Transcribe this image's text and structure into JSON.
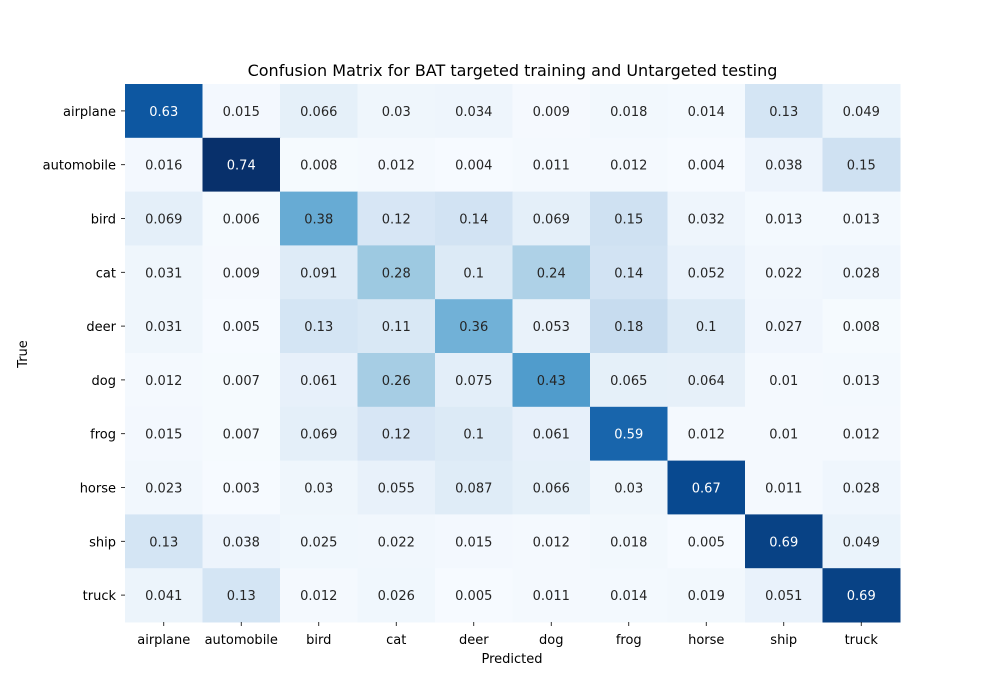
{
  "chart_data": {
    "type": "heatmap",
    "title": "Confusion Matrix for BAT targeted training and Untargeted testing",
    "xlabel": "Predicted",
    "ylabel": "True",
    "x_categories": [
      "airplane",
      "automobile",
      "bird",
      "cat",
      "deer",
      "dog",
      "frog",
      "horse",
      "ship",
      "truck"
    ],
    "y_categories": [
      "airplane",
      "automobile",
      "bird",
      "cat",
      "deer",
      "dog",
      "frog",
      "horse",
      "ship",
      "truck"
    ],
    "values": [
      [
        "0.63",
        "0.015",
        "0.066",
        "0.03",
        "0.034",
        "0.009",
        "0.018",
        "0.014",
        "0.13",
        "0.049"
      ],
      [
        "0.016",
        "0.74",
        "0.008",
        "0.012",
        "0.004",
        "0.011",
        "0.012",
        "0.004",
        "0.038",
        "0.15"
      ],
      [
        "0.069",
        "0.006",
        "0.38",
        "0.12",
        "0.14",
        "0.069",
        "0.15",
        "0.032",
        "0.013",
        "0.013"
      ],
      [
        "0.031",
        "0.009",
        "0.091",
        "0.28",
        "0.1",
        "0.24",
        "0.14",
        "0.052",
        "0.022",
        "0.028"
      ],
      [
        "0.031",
        "0.005",
        "0.13",
        "0.11",
        "0.36",
        "0.053",
        "0.18",
        "0.1",
        "0.027",
        "0.008"
      ],
      [
        "0.012",
        "0.007",
        "0.061",
        "0.26",
        "0.075",
        "0.43",
        "0.065",
        "0.064",
        "0.01",
        "0.013"
      ],
      [
        "0.015",
        "0.007",
        "0.069",
        "0.12",
        "0.1",
        "0.061",
        "0.59",
        "0.012",
        "0.01",
        "0.012"
      ],
      [
        "0.023",
        "0.003",
        "0.03",
        "0.055",
        "0.087",
        "0.066",
        "0.03",
        "0.67",
        "0.011",
        "0.028"
      ],
      [
        "0.13",
        "0.038",
        "0.025",
        "0.022",
        "0.015",
        "0.012",
        "0.018",
        "0.005",
        "0.69",
        "0.049"
      ],
      [
        "0.041",
        "0.13",
        "0.012",
        "0.026",
        "0.005",
        "0.011",
        "0.014",
        "0.019",
        "0.051",
        "0.69"
      ]
    ],
    "colormap": "Blues",
    "color_range": [
      0,
      0.74
    ],
    "colorbar": false,
    "grid": false
  }
}
